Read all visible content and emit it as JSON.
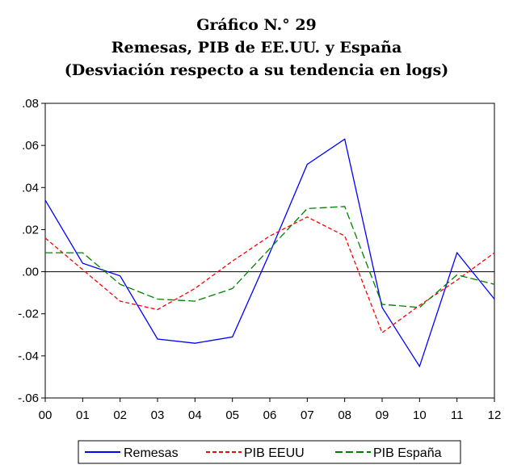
{
  "chart_data": {
    "type": "line",
    "title": [
      "Gráfico N.° 29",
      "Remesas, PIB de EE.UU. y España",
      "(Desviación respecto a su tendencia en logs)"
    ],
    "xlabel": "",
    "ylabel": "",
    "categories": [
      "00",
      "01",
      "02",
      "03",
      "04",
      "05",
      "06",
      "07",
      "08",
      "09",
      "10",
      "11",
      "12"
    ],
    "ylim": [
      -0.06,
      0.08
    ],
    "yticks": [
      0.08,
      0.06,
      0.04,
      0.02,
      0.0,
      -0.02,
      -0.04,
      -0.06
    ],
    "ytick_labels": [
      ".08",
      ".06",
      ".04",
      ".02",
      ".00",
      "-.02",
      "-.04",
      "-.06"
    ],
    "grid": false,
    "zero_line": true,
    "legend_position": "bottom",
    "series": [
      {
        "name": "Remesas",
        "color": "#0000ff",
        "dash": "solid",
        "values": [
          0.034,
          0.004,
          -0.002,
          -0.032,
          -0.034,
          -0.031,
          0.009,
          0.051,
          0.063,
          -0.017,
          -0.045,
          0.009,
          -0.013
        ]
      },
      {
        "name": "PIB EEUU",
        "color": "#ff0000",
        "dash": "short",
        "values": [
          0.016,
          0.001,
          -0.014,
          -0.018,
          -0.008,
          0.005,
          0.017,
          0.026,
          0.017,
          -0.029,
          -0.016,
          -0.004,
          0.009
        ]
      },
      {
        "name": "PIB España",
        "color": "#008000",
        "dash": "long",
        "values": [
          0.009,
          0.009,
          -0.006,
          -0.013,
          -0.014,
          -0.008,
          0.011,
          0.03,
          0.031,
          -0.0155,
          -0.017,
          -0.0015,
          -0.006
        ]
      }
    ]
  }
}
